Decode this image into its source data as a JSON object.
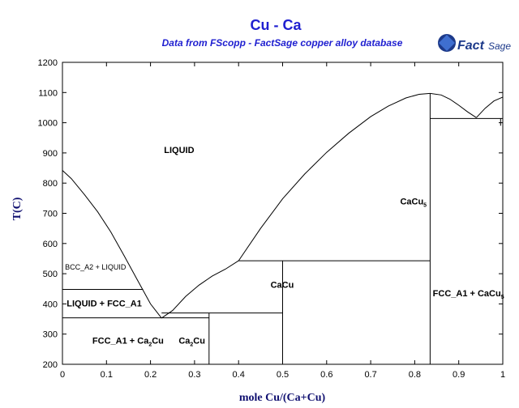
{
  "chart_data": {
    "type": "line",
    "title": "Cu - Ca",
    "subtitle": "Data from FScopp - FactSage copper alloy database",
    "xlabel": "mole Cu/(Ca+Cu)",
    "ylabel": "T(C)",
    "xlim": [
      0,
      1
    ],
    "ylim": [
      200,
      1200
    ],
    "x_ticks": [
      "0",
      "0.1",
      "0.2",
      "0.3",
      "0.4",
      "0.5",
      "0.6",
      "0.7",
      "0.8",
      "0.9",
      "1"
    ],
    "y_ticks": [
      "200",
      "300",
      "400",
      "500",
      "600",
      "700",
      "800",
      "900",
      "1000",
      "1100",
      "1200"
    ],
    "series": [
      {
        "values": [
          [
            0,
            842
          ],
          [
            0.02,
            815
          ],
          [
            0.05,
            762
          ],
          [
            0.08,
            705
          ],
          [
            0.11,
            638
          ],
          [
            0.14,
            560
          ],
          [
            0.17,
            480
          ],
          [
            0.2,
            400
          ],
          [
            0.225,
            353
          ]
        ]
      },
      {
        "values": [
          [
            0.225,
            353
          ],
          [
            0.25,
            378
          ],
          [
            0.28,
            425
          ],
          [
            0.31,
            462
          ],
          [
            0.34,
            492
          ],
          [
            0.37,
            515
          ],
          [
            0.4,
            543
          ]
        ]
      },
      {
        "values": [
          [
            0.4,
            543
          ],
          [
            0.45,
            650
          ],
          [
            0.5,
            748
          ],
          [
            0.55,
            830
          ],
          [
            0.6,
            902
          ],
          [
            0.65,
            965
          ],
          [
            0.7,
            1020
          ],
          [
            0.74,
            1055
          ],
          [
            0.78,
            1082
          ],
          [
            0.81,
            1094
          ],
          [
            0.835,
            1097
          ]
        ]
      },
      {
        "values": [
          [
            0.835,
            1097
          ],
          [
            0.86,
            1092
          ],
          [
            0.88,
            1078
          ],
          [
            0.9,
            1058
          ],
          [
            0.92,
            1036
          ],
          [
            0.94,
            1017
          ]
        ]
      },
      {
        "values": [
          [
            0.94,
            1017
          ],
          [
            0.96,
            1048
          ],
          [
            0.98,
            1072
          ],
          [
            1.0,
            1085
          ]
        ]
      },
      {
        "values": [
          [
            0,
            448
          ],
          [
            0.183,
            448
          ]
        ]
      },
      {
        "values": [
          [
            0,
            354
          ],
          [
            0.333,
            354
          ]
        ]
      },
      {
        "values": [
          [
            0.225,
            370
          ],
          [
            0.5,
            370
          ]
        ]
      },
      {
        "values": [
          [
            0.4,
            543
          ],
          [
            0.835,
            543
          ]
        ]
      },
      {
        "values": [
          [
            0.835,
            1014
          ],
          [
            1.0,
            1014
          ]
        ]
      },
      {
        "values": [
          [
            0.333,
            200
          ],
          [
            0.333,
            370
          ]
        ]
      },
      {
        "values": [
          [
            0.5,
            200
          ],
          [
            0.5,
            543
          ]
        ]
      },
      {
        "values": [
          [
            0.835,
            200
          ],
          [
            0.835,
            1097
          ]
        ]
      },
      {
        "values": [
          [
            0.995,
            1014
          ],
          [
            0.995,
            990
          ]
        ]
      }
    ],
    "labels": [
      {
        "text": "LIQUID",
        "x": 0.265,
        "y": 900
      },
      {
        "text": "BCC_A2 + LIQUID",
        "x": 0.075,
        "y": 514,
        "small": true
      },
      {
        "text": "LIQUID + FCC_A1",
        "x": 0.095,
        "y": 392
      },
      {
        "text": "FCC_A1 + Ca2Cu",
        "x": 0.149,
        "y": 268
      },
      {
        "text": "Ca2Cu",
        "x": 0.294,
        "y": 268
      },
      {
        "text": "CaCu",
        "x": 0.499,
        "y": 453
      },
      {
        "text": "CaCu5",
        "x": 0.797,
        "y": 730
      },
      {
        "text": "FCC_A1 + CaCu5",
        "x": 0.922,
        "y": 425
      }
    ]
  },
  "logo": {
    "name": "FactSage",
    "text_part1": "Fact",
    "text_part2": "Sage"
  }
}
